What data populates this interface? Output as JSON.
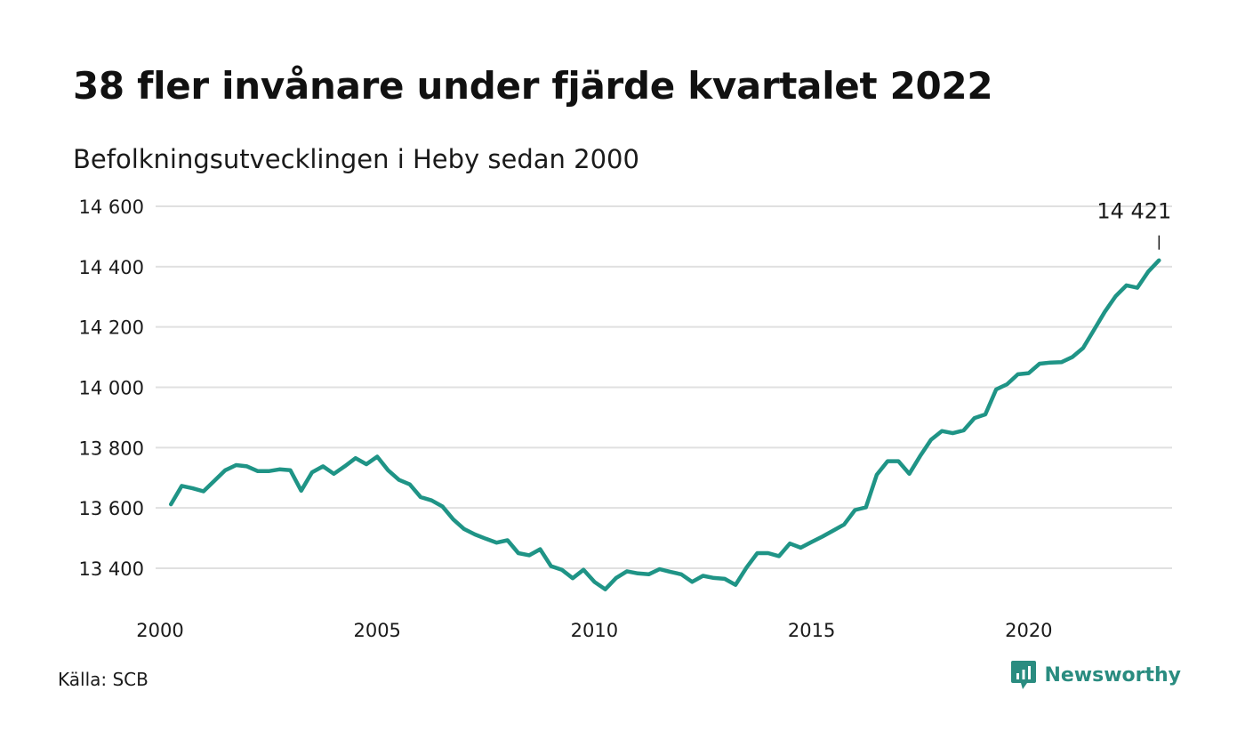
{
  "title": "38 fler invånare under fjärde kvartalet 2022",
  "subtitle": "Befolkningsutvecklingen i Heby sedan 2000",
  "source": "Källa: SCB",
  "brand": {
    "name": "Newsworthy",
    "icon": "newsworthy-logo-icon",
    "color": "#2a8c80"
  },
  "annotation": {
    "label": "14 421",
    "value": 14421
  },
  "colors": {
    "line": "#1f9486",
    "grid": "#e0e0e0",
    "text": "#1a1a1a"
  },
  "chart_data": {
    "type": "line",
    "title": "38 fler invånare under fjärde kvartalet 2022",
    "subtitle": "Befolkningsutvecklingen i Heby sedan 2000",
    "xlabel": "",
    "ylabel": "",
    "xlim": [
      2000,
      2023.3
    ],
    "ylim": [
      13260,
      14650
    ],
    "x_ticks": [
      2000,
      2005,
      2010,
      2015,
      2020
    ],
    "x_tick_labels": [
      "2000",
      "2005",
      "2010",
      "2015",
      "2020"
    ],
    "y_ticks": [
      13400,
      13600,
      13800,
      14000,
      14200,
      14400,
      14600
    ],
    "y_tick_labels": [
      "13 400",
      "13 600",
      "13 800",
      "14 000",
      "14 200",
      "14 400",
      "14 600"
    ],
    "grid": true,
    "x_start": 2000.25,
    "x_step": 0.25,
    "series": [
      {
        "values": [
          13612,
          13673,
          13665,
          13655,
          13690,
          13725,
          13742,
          13738,
          13722,
          13722,
          13728,
          13725,
          13657,
          13718,
          13738,
          13713,
          13738,
          13765,
          13745,
          13770,
          13725,
          13693,
          13678,
          13636,
          13625,
          13605,
          13562,
          13530,
          13512,
          13498,
          13485,
          13493,
          13450,
          13443,
          13463,
          13407,
          13395,
          13367,
          13395,
          13355,
          13330,
          13368,
          13390,
          13383,
          13380,
          13397,
          13388,
          13380,
          13355,
          13375,
          13368,
          13365,
          13345,
          13402,
          13450,
          13450,
          13440,
          13482,
          13468,
          13487,
          13505,
          13525,
          13545,
          13593,
          13602,
          13710,
          13755,
          13755,
          13713,
          13772,
          13826,
          13855,
          13848,
          13857,
          13898,
          13910,
          13993,
          14010,
          14043,
          14047,
          14078,
          14082,
          14083,
          14100,
          14130,
          14190,
          14250,
          14302,
          14338,
          14330,
          14383,
          14421
        ]
      }
    ]
  }
}
